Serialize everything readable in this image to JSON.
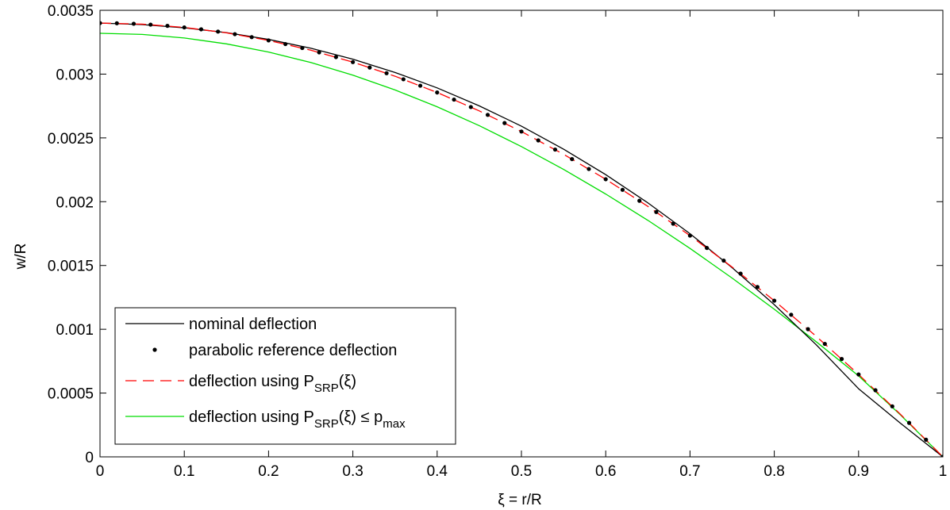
{
  "chart_data": {
    "type": "line",
    "xlabel": "ξ = r/R",
    "ylabel": "w/R",
    "xlim": [
      0,
      1
    ],
    "ylim": [
      0,
      0.0035
    ],
    "xticks": [
      "0",
      "0.1",
      "0.2",
      "0.3",
      "0.4",
      "0.5",
      "0.6",
      "0.7",
      "0.8",
      "0.9",
      "1"
    ],
    "yticks": [
      "0",
      "0.0005",
      "0.001",
      "0.0015",
      "0.002",
      "0.0025",
      "0.003",
      "0.0035"
    ],
    "grid": false,
    "legend_position": "bottom-left",
    "series": [
      {
        "name": "nominal deflection",
        "style": "solid",
        "color": "#000000",
        "x": [
          0,
          0.05,
          0.1,
          0.15,
          0.2,
          0.25,
          0.3,
          0.35,
          0.4,
          0.45,
          0.5,
          0.55,
          0.6,
          0.65,
          0.7,
          0.75,
          0.8,
          0.85,
          0.9,
          0.95,
          1.0
        ],
        "y": [
          0.0034,
          0.003388,
          0.003363,
          0.003325,
          0.003272,
          0.003203,
          0.003117,
          0.003013,
          0.002892,
          0.002751,
          0.002592,
          0.002412,
          0.002212,
          0.001991,
          0.001749,
          0.001483,
          0.001193,
          0.000877,
          0.000534,
          0.000262,
          0.0
        ]
      },
      {
        "name": "parabolic reference deflection",
        "style": "dots",
        "color": "#000000",
        "x": [
          0,
          0.02,
          0.04,
          0.06,
          0.08,
          0.1,
          0.12,
          0.14,
          0.16,
          0.18,
          0.2,
          0.22,
          0.24,
          0.26,
          0.28,
          0.3,
          0.32,
          0.34,
          0.36,
          0.38,
          0.4,
          0.42,
          0.44,
          0.46,
          0.48,
          0.5,
          0.52,
          0.54,
          0.56,
          0.58,
          0.6,
          0.62,
          0.64,
          0.66,
          0.68,
          0.7,
          0.72,
          0.74,
          0.76,
          0.78,
          0.8,
          0.82,
          0.84,
          0.86,
          0.88,
          0.9,
          0.92,
          0.94,
          0.96,
          0.98,
          1.0
        ],
        "y": [
          0.0034,
          0.0033986,
          0.0033946,
          0.0033878,
          0.0033782,
          0.003366,
          0.003351,
          0.0033334,
          0.003313,
          0.0032898,
          0.003264,
          0.0032354,
          0.0032042,
          0.0031702,
          0.0031334,
          0.003094,
          0.0030518,
          0.003007,
          0.0029594,
          0.002909,
          0.002856,
          0.0028002,
          0.0027418,
          0.0026806,
          0.0026166,
          0.00255,
          0.0024806,
          0.0024086,
          0.0023338,
          0.0022562,
          0.002176,
          0.002093,
          0.0020074,
          0.001919,
          0.0018278,
          0.001734,
          0.0016374,
          0.0015382,
          0.0014362,
          0.0013314,
          0.001224,
          0.0011138,
          0.001001,
          0.0008854,
          0.000767,
          0.000646,
          0.0005222,
          0.0003958,
          0.0002666,
          0.0001346,
          0.0
        ]
      },
      {
        "name": "deflection using P_SRP(ξ)",
        "style": "dashed",
        "color": "#ff0000",
        "x": [
          0,
          0.05,
          0.1,
          0.15,
          0.2,
          0.25,
          0.3,
          0.35,
          0.4,
          0.45,
          0.5,
          0.55,
          0.6,
          0.65,
          0.7,
          0.75,
          0.8,
          0.85,
          0.9,
          0.95,
          1.0
        ],
        "y": [
          0.0034,
          0.0033915,
          0.003366,
          0.0033235,
          0.003264,
          0.0031875,
          0.003094,
          0.0029835,
          0.002856,
          0.0027115,
          0.00255,
          0.0023715,
          0.002176,
          0.0019635,
          0.001734,
          0.0014875,
          0.001224,
          0.0009435,
          0.000646,
          0.0003315,
          0.0
        ]
      },
      {
        "name": "deflection using P_SRP(ξ) ≤ p_max",
        "style": "solid",
        "color": "#00dd00",
        "x": [
          0,
          0.05,
          0.1,
          0.15,
          0.2,
          0.25,
          0.3,
          0.35,
          0.4,
          0.45,
          0.5,
          0.55,
          0.6,
          0.65,
          0.7,
          0.75,
          0.8,
          0.85,
          0.9,
          0.95,
          1.0
        ],
        "y": [
          0.00332,
          0.003311,
          0.003283,
          0.003237,
          0.003173,
          0.003091,
          0.002992,
          0.002876,
          0.002744,
          0.002596,
          0.002432,
          0.002253,
          0.00206,
          0.001854,
          0.001634,
          0.001401,
          0.001157,
          0.000901,
          0.000635,
          0.000327,
          0.0
        ]
      }
    ]
  },
  "legend": {
    "item1": "nominal deflection",
    "item2": "parabolic reference deflection",
    "item3_main": "deflection using P",
    "item3_sub": "SRP",
    "item3_tail": "(ξ)",
    "item4_main": "deflection using P",
    "item4_sub": "SRP",
    "item4_mid": "(ξ) ≤ p",
    "item4_sub2": "max"
  }
}
